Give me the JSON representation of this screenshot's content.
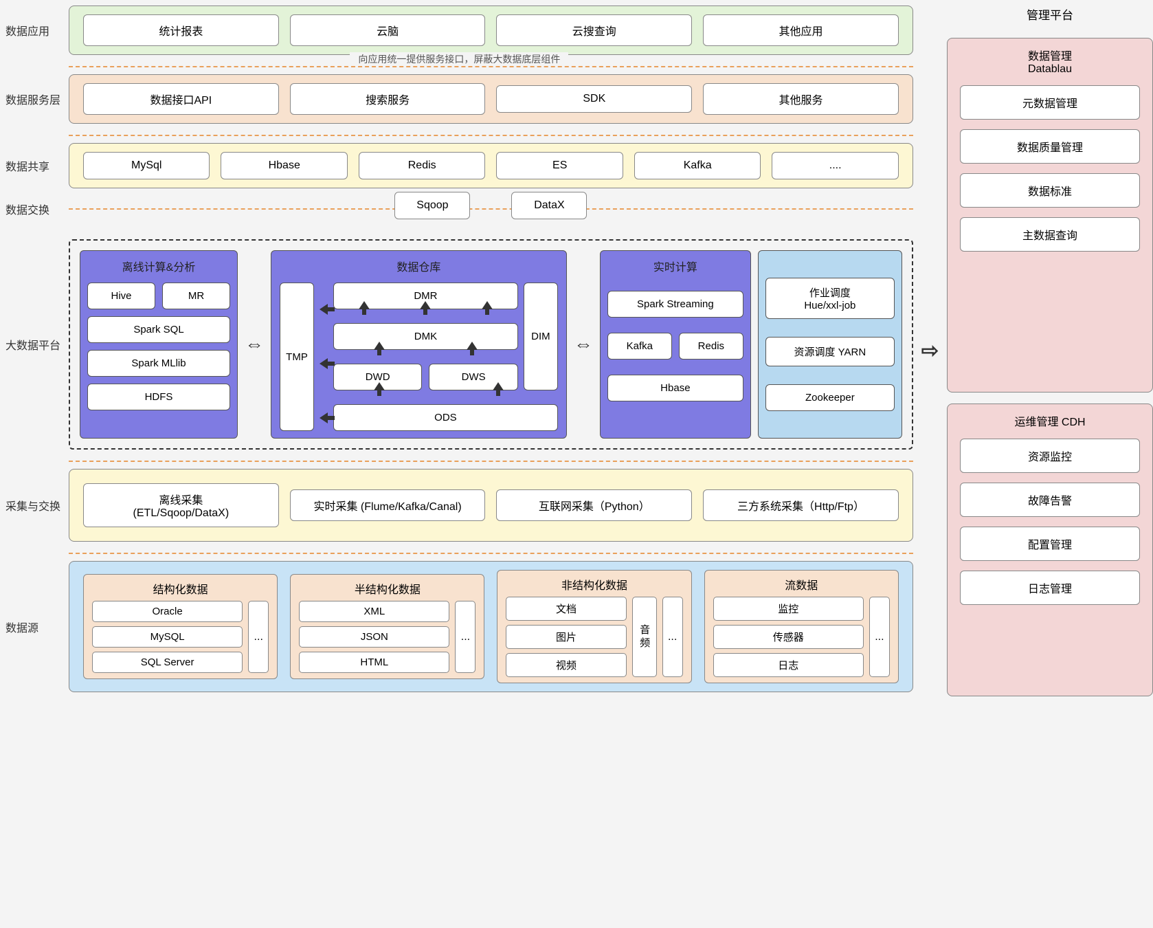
{
  "labels": {
    "app": "数据应用",
    "service": "数据服务层",
    "share": "数据共享",
    "exchange": "数据交换",
    "bigdata": "大数据平台",
    "collect": "采集与交换",
    "source": "数据源",
    "mgmt": "管理平台"
  },
  "hr_text": "向应用统一提供服务接口，屏蔽大数据底层组件",
  "app_items": [
    "统计报表",
    "云脑",
    "云搜查询",
    "其他应用"
  ],
  "service_items": [
    "数据接口API",
    "搜索服务",
    "SDK",
    "其他服务"
  ],
  "share_items": [
    "MySql",
    "Hbase",
    "Redis",
    "ES",
    "Kafka",
    "...."
  ],
  "exchange_items": [
    "Sqoop",
    "DataX"
  ],
  "offline": {
    "title": "离线计算&分析",
    "row1": [
      "Hive",
      "MR"
    ],
    "items": [
      "Spark SQL",
      "Spark MLlib",
      "HDFS"
    ]
  },
  "warehouse": {
    "title": "数据仓库",
    "tmp": "TMP",
    "dim": "DIM",
    "dmr": "DMR",
    "dmk": "DMK",
    "dwd": "DWD",
    "dws": "DWS",
    "ods": "ODS"
  },
  "realtime": {
    "title": "实时计算",
    "items_top": "Spark Streaming",
    "row2": [
      "Kafka",
      "Redis"
    ],
    "bottom": "Hbase"
  },
  "sched": {
    "items": [
      "作业调度\nHue/xxl-job",
      "资源调度 YARN",
      "Zookeeper"
    ]
  },
  "collect_items": [
    "离线采集\n(ETL/Sqoop/DataX)",
    "实时采集 (Flume/Kafka/Canal)",
    "互联网采集（Python）",
    "三方系统采集（Http/Ftp）"
  ],
  "sources": [
    {
      "title": "结构化数据",
      "items": [
        "Oracle",
        "MySQL",
        "SQL Server"
      ],
      "extra": null,
      "more": "..."
    },
    {
      "title": "半结构化数据",
      "items": [
        "XML",
        "JSON",
        "HTML"
      ],
      "extra": null,
      "more": "..."
    },
    {
      "title": "非结构化数据",
      "items": [
        "文档",
        "图片",
        "视频"
      ],
      "extra": "音频",
      "more": "..."
    },
    {
      "title": "流数据",
      "items": [
        "监控",
        "传感器",
        "日志"
      ],
      "extra": null,
      "more": "..."
    }
  ],
  "right": {
    "group1": {
      "title": "数据管理\nDatablau",
      "items": [
        "元数据管理",
        "数据质量管理",
        "数据标准",
        "主数据查询"
      ]
    },
    "group2": {
      "title": "运维管理 CDH",
      "items": [
        "资源监控",
        "故障告警",
        "配置管理",
        "日志管理"
      ]
    }
  },
  "arrow_dbl": "⇔",
  "arrow_right": "⇨"
}
